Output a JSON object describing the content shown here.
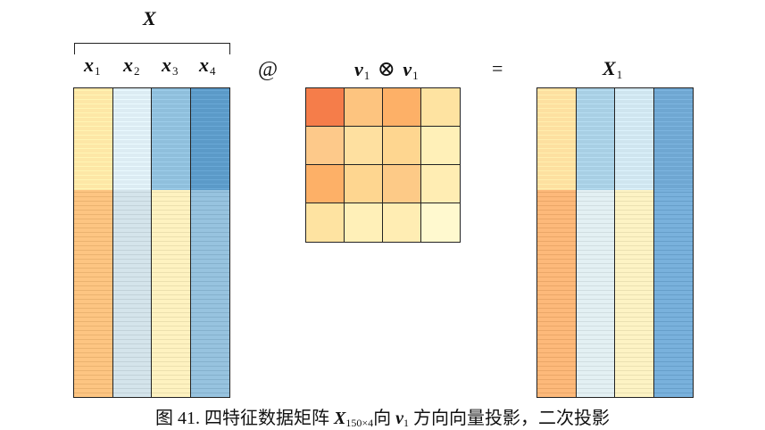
{
  "labels": {
    "X": "X",
    "x1": "x",
    "x1_sub": "1",
    "x2": "x",
    "x2_sub": "2",
    "x3": "x",
    "x3_sub": "3",
    "x4": "x",
    "x4_sub": "4",
    "at": "@",
    "v": "v",
    "v_sub": "1",
    "otimes": "⊗",
    "equals": "=",
    "X1": "X",
    "X1_sub": "1"
  },
  "caption": {
    "prefix": "图 41. 四特征数据矩阵 ",
    "matrix": "X",
    "matrix_sub": "150×4",
    "mid": "向 ",
    "vector": "v",
    "vector_sub": "1",
    "suffix": "方向向量投影，二次投影"
  },
  "colors": {
    "x1": "#fde7a6",
    "x1_lower": "#fdc582",
    "x2": "#dcecf3",
    "x3_upper": "#8fbfdc",
    "x3_lower": "#fef2c0",
    "x4_upper": "#5b9ac8",
    "x4_lower": "#97c3df",
    "X1_c1": "#fde0a0",
    "X1_c1_lower": "#fdb97a",
    "X1_c2": "#a8cfe4",
    "X1_c2_lower": "#e3f0f3",
    "X1_c3": "#cfe5ef",
    "X1_c3_lower": "#fdf3c4",
    "X1_c4": "#6fa7d2"
  },
  "outer_product": [
    [
      "#f57d4a",
      "#fdc47f",
      "#fdb067",
      "#fee3a1"
    ],
    [
      "#fdc98a",
      "#fee0a0",
      "#fed690",
      "#fff0b8"
    ],
    [
      "#fdb067",
      "#fed690",
      "#fdca87",
      "#ffedb3"
    ],
    [
      "#fee3a1",
      "#fff0b8",
      "#ffedb3",
      "#fff9cf"
    ]
  ]
}
